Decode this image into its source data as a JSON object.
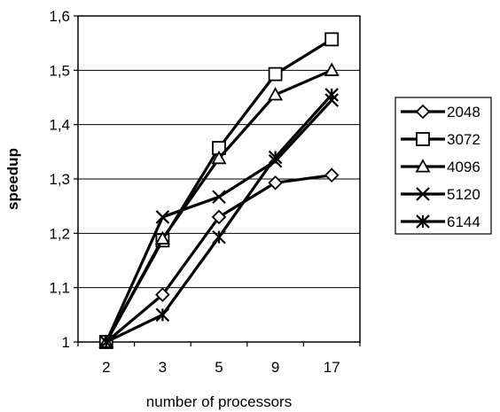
{
  "chart_data": {
    "type": "line",
    "title": "",
    "xlabel": "number of processors",
    "ylabel": "speedup",
    "categories": [
      "2",
      "3",
      "5",
      "9",
      "17"
    ],
    "ylim": [
      1,
      1.6
    ],
    "yticks": [
      "1",
      "1,1",
      "1,2",
      "1,3",
      "1,4",
      "1,5",
      "1,6"
    ],
    "grid": "horizontal",
    "legend_position": "right",
    "line_color": "#000000",
    "series": [
      {
        "name": "2048",
        "marker": "diamond",
        "values": [
          1.0,
          1.087,
          1.23,
          1.293,
          1.307
        ]
      },
      {
        "name": "3072",
        "marker": "square",
        "values": [
          1.0,
          1.187,
          1.357,
          1.493,
          1.557
        ]
      },
      {
        "name": "4096",
        "marker": "triangle",
        "values": [
          1.0,
          1.19,
          1.338,
          1.455,
          1.5
        ]
      },
      {
        "name": "5120",
        "marker": "x",
        "values": [
          1.0,
          1.23,
          1.267,
          1.333,
          1.445
        ]
      },
      {
        "name": "6144",
        "marker": "asterisk",
        "values": [
          1.0,
          1.05,
          1.193,
          1.34,
          1.455
        ]
      }
    ]
  }
}
